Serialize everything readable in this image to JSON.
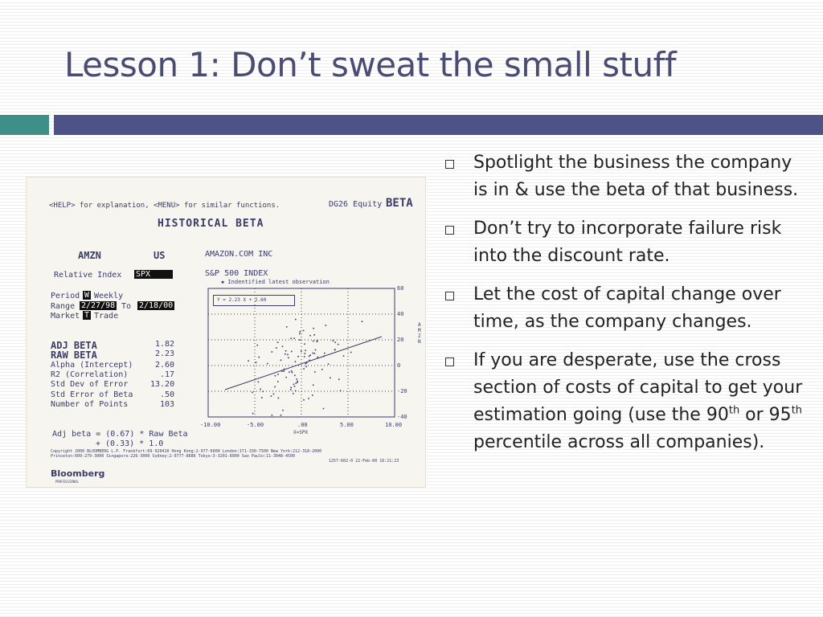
{
  "slide": {
    "title": "Lesson 1: Don’t sweat the small stuff",
    "colors": {
      "title": "#4a4c72",
      "rule_left": "#3e8f88",
      "rule_right": "#4e5387"
    }
  },
  "bloomberg": {
    "help_line": "<HELP> for explanation, <MENU> for similar functions.",
    "screen_code": "DG26 Equity",
    "function": "BETA",
    "heading": "HISTORICAL BETA",
    "ticker": "AMZN",
    "country": "US",
    "company": "AMAZON.COM INC",
    "relative_index_label": "Relative Index",
    "relative_index_value": "SPX",
    "index_name": "S&P 500 INDEX",
    "latest_note": "▪ Indentified latest observation",
    "period_label": "Period",
    "period_value": "W",
    "period_text": "Weekly",
    "range_label": "Range",
    "range_from": "2/27/98",
    "range_to_label": "To",
    "range_to": "2/18/00",
    "market_label": "Market",
    "market_value": "T",
    "market_text": "Trade",
    "equation": "Y =  2.23 X +   2.60",
    "stats": [
      {
        "label": "ADJ BETA",
        "value": "1.82"
      },
      {
        "label": "RAW BETA",
        "value": "2.23"
      },
      {
        "label": "Alpha (Intercept)",
        "value": "2.60"
      },
      {
        "label": "R2 (Correlation)",
        "value": ".17"
      },
      {
        "label": "Std Dev of Error",
        "value": "13.20"
      },
      {
        "label": "Std Error of Beta",
        "value": ".50"
      },
      {
        "label": "Number of Points",
        "value": "103"
      }
    ],
    "adj_formula_1": "Adj beta = (0.67) * Raw Beta",
    "adj_formula_2": "+ (0.33) * 1.0",
    "copyright_1": "Copyright 2000 BLOOMBERG L.P.  Frankfurt:69-920410  Hong Kong:2-977-6000  London:171-330-7500  New York:212-318-2000",
    "copyright_2": "Princeton:609-279-3000  Singapore:226-3000  Sydney:2-9777-8686  Tokyo:3-3201-8900  Sao Paulo:11-3048-4500",
    "copyright_3": "1257-602-0  22-Feb-00 16:21:23",
    "logo": "Bloomberg",
    "logo_sub": "PROFESSIONAL",
    "y_axis_label": "AMZN",
    "x_axis_label": "X=SPX",
    "x_ticks": [
      "-10.00",
      "-5.00",
      ".00",
      "5.00",
      "10.00"
    ],
    "y_ticks": [
      "60",
      "40",
      "20",
      "0",
      "-20",
      "-40"
    ]
  },
  "bullets": [
    {
      "text": "Spotlight the business the company is in & use the beta of that business."
    },
    {
      "text": "Don’t try to incorporate failure risk into the discount rate."
    },
    {
      "text": "Let the cost of capital change over time, as the company changes."
    },
    {
      "text_a": "If you are desperate, use the cross section of costs of capital to get your estimation going (use the 90",
      "sup_1": "th",
      "text_b": " or 95",
      "sup_2": "th",
      "text_c": " percentile across all companies)."
    }
  ]
}
